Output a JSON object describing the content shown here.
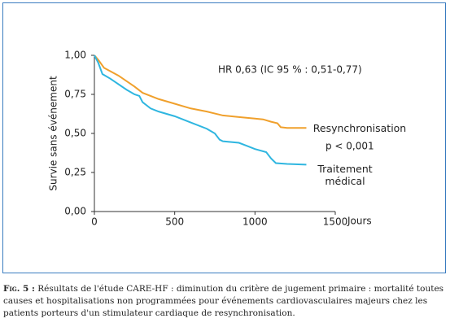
{
  "chart_data": {
    "type": "line",
    "annotations": [
      "HR 0,63 (IC 95 % : 0,51-0,77)",
      "p < 0,001"
    ],
    "x_label": "Jours",
    "y_label": "Survie sans événement",
    "xlim": [
      0,
      1500
    ],
    "xticks": [
      0,
      500,
      1000,
      1500
    ],
    "ylim": [
      0,
      1
    ],
    "yticks": [
      {
        "value": 0,
        "label": "0,00"
      },
      {
        "value": 0.25,
        "label": "0,25"
      },
      {
        "value": 0.5,
        "label": "0,50"
      },
      {
        "value": 0.75,
        "label": "0,75"
      },
      {
        "value": 1,
        "label": "1,00"
      }
    ],
    "series": [
      {
        "name": "Resynchronisation",
        "color": "#f0a02c",
        "x": [
          0,
          25,
          60,
          150,
          250,
          300,
          400,
          500,
          600,
          700,
          800,
          900,
          1000,
          1050,
          1100,
          1140,
          1160,
          1200,
          1320
        ],
        "values": [
          1.0,
          0.97,
          0.92,
          0.87,
          0.8,
          0.76,
          0.72,
          0.69,
          0.66,
          0.64,
          0.615,
          0.605,
          0.595,
          0.59,
          0.575,
          0.565,
          0.54,
          0.535,
          0.535
        ]
      },
      {
        "name": "Traitement médical",
        "color": "#2fb6e0",
        "x": [
          0,
          25,
          50,
          100,
          200,
          250,
          280,
          300,
          350,
          400,
          500,
          600,
          700,
          750,
          780,
          800,
          900,
          950,
          1000,
          1070,
          1100,
          1130,
          1200,
          1320
        ],
        "values": [
          1.0,
          0.95,
          0.88,
          0.85,
          0.78,
          0.75,
          0.74,
          0.7,
          0.66,
          0.64,
          0.61,
          0.57,
          0.53,
          0.5,
          0.46,
          0.45,
          0.44,
          0.42,
          0.4,
          0.38,
          0.34,
          0.31,
          0.305,
          0.3
        ]
      }
    ]
  },
  "caption": {
    "label": "Fig. 5 :",
    "text": "Résultats de l'étude CARE-HF : diminution du critère de jugement primaire : mortalité toutes causes et hospitalisations non programmées pour événements cardiovasculaires majeurs chez les patients porteurs d'un stimulateur cardiaque de resynchronisation."
  }
}
